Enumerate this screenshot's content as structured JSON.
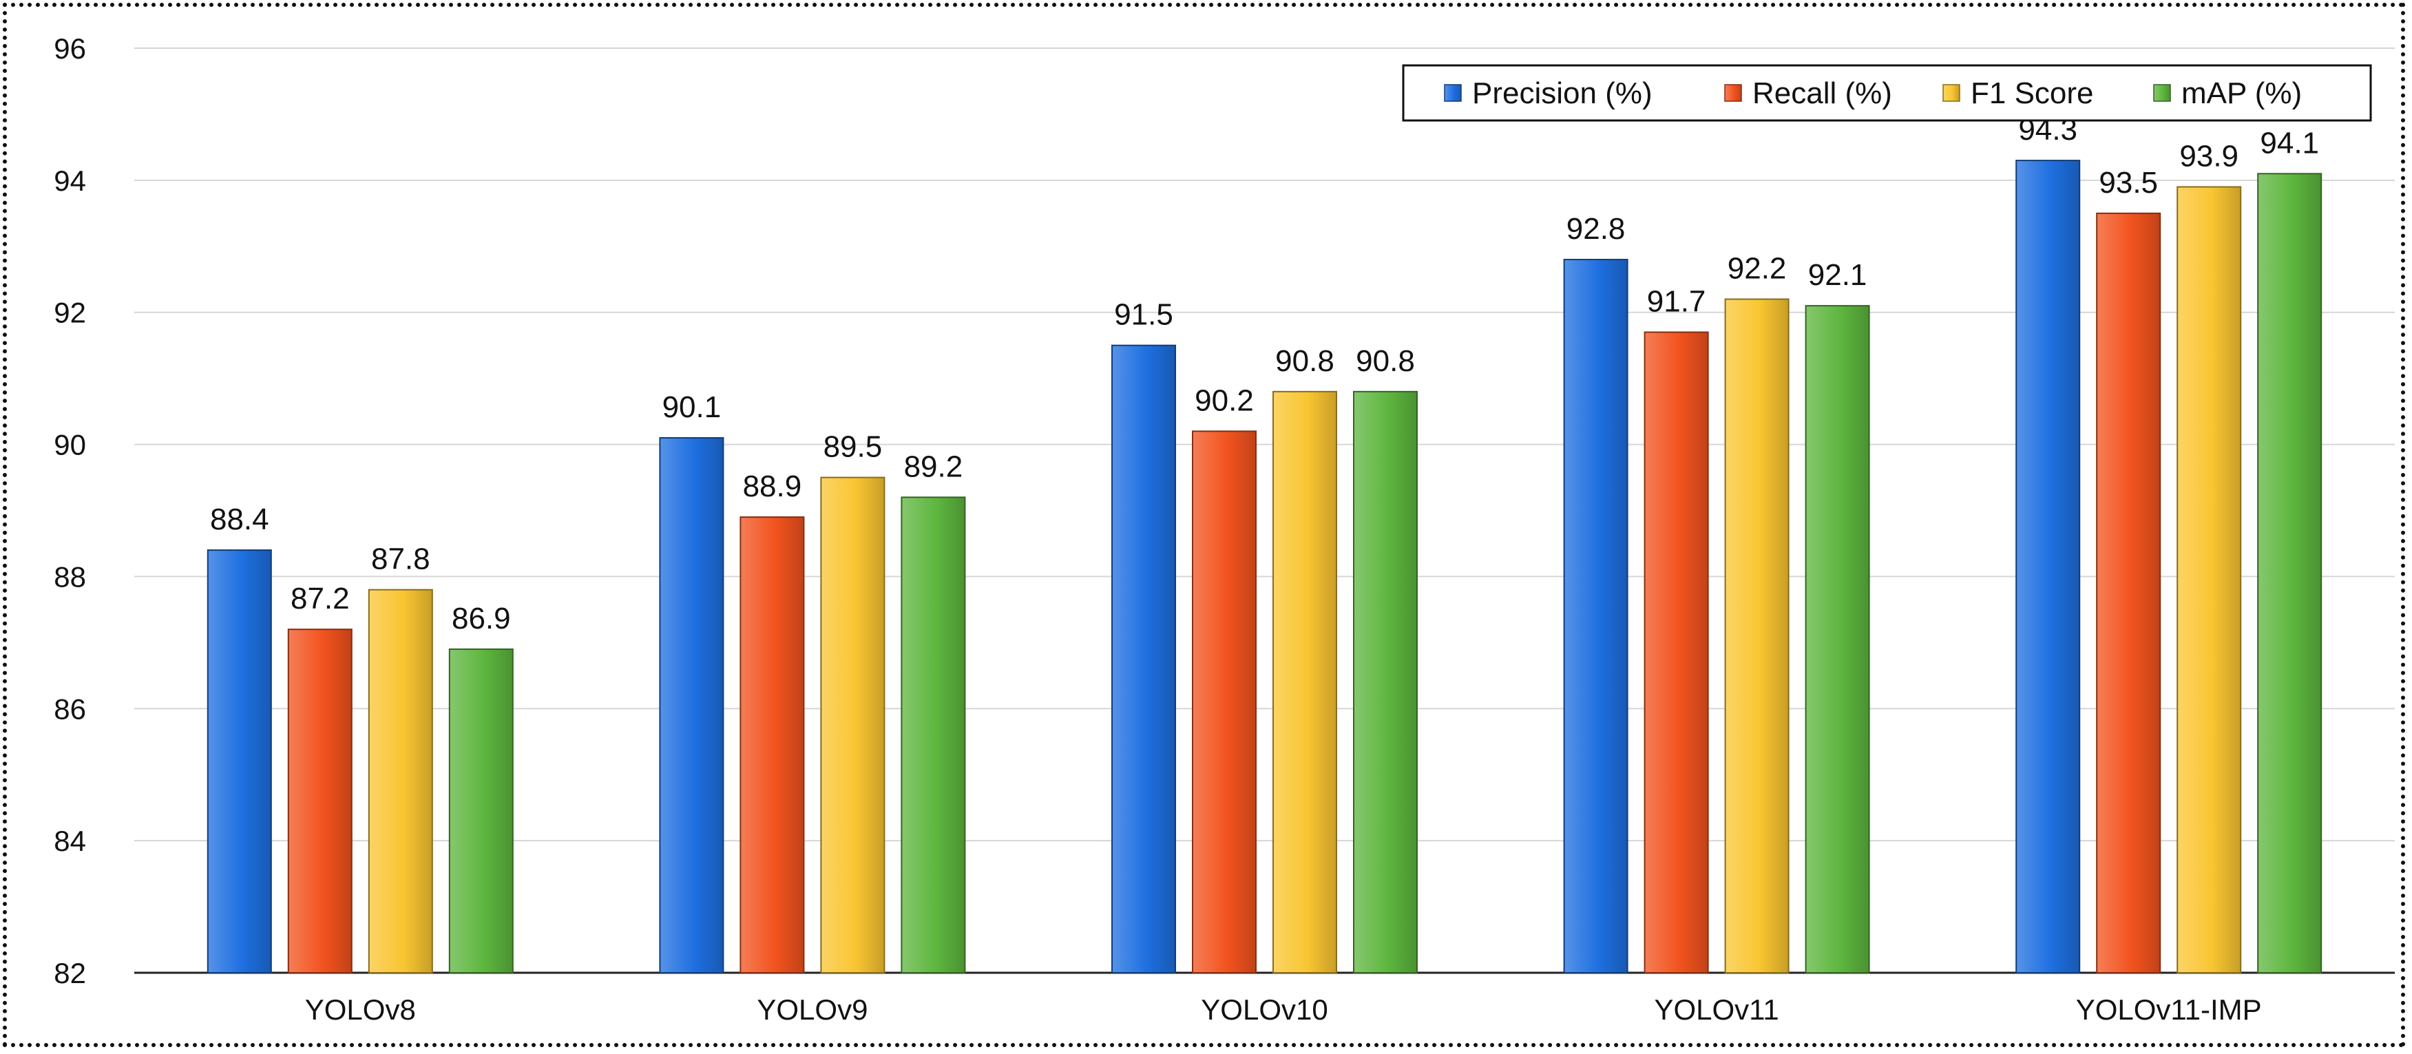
{
  "chart_data": {
    "type": "bar",
    "categories": [
      "YOLOv8",
      "YOLOv9",
      "YOLOv10",
      "YOLOv11",
      "YOLOv11-IMP"
    ],
    "series": [
      {
        "name": "Precision (%)",
        "color": "#1E6FE0",
        "values": [
          88.4,
          90.1,
          91.5,
          92.8,
          94.3
        ]
      },
      {
        "name": "Recall (%)",
        "color": "#F2531E",
        "values": [
          87.2,
          88.9,
          90.2,
          91.7,
          93.5
        ]
      },
      {
        "name": "F1 Score",
        "color": "#F9C531",
        "values": [
          87.8,
          89.5,
          90.8,
          92.2,
          93.9
        ]
      },
      {
        "name": "mAP (%)",
        "color": "#5DB63E",
        "values": [
          86.9,
          89.2,
          90.8,
          92.1,
          94.1
        ]
      }
    ],
    "title": "",
    "xlabel": "",
    "ylabel": "",
    "ylim": [
      82,
      96
    ],
    "yticks": [
      82,
      84,
      86,
      88,
      90,
      92,
      94,
      96
    ],
    "grid": true,
    "legend": "top-right"
  }
}
